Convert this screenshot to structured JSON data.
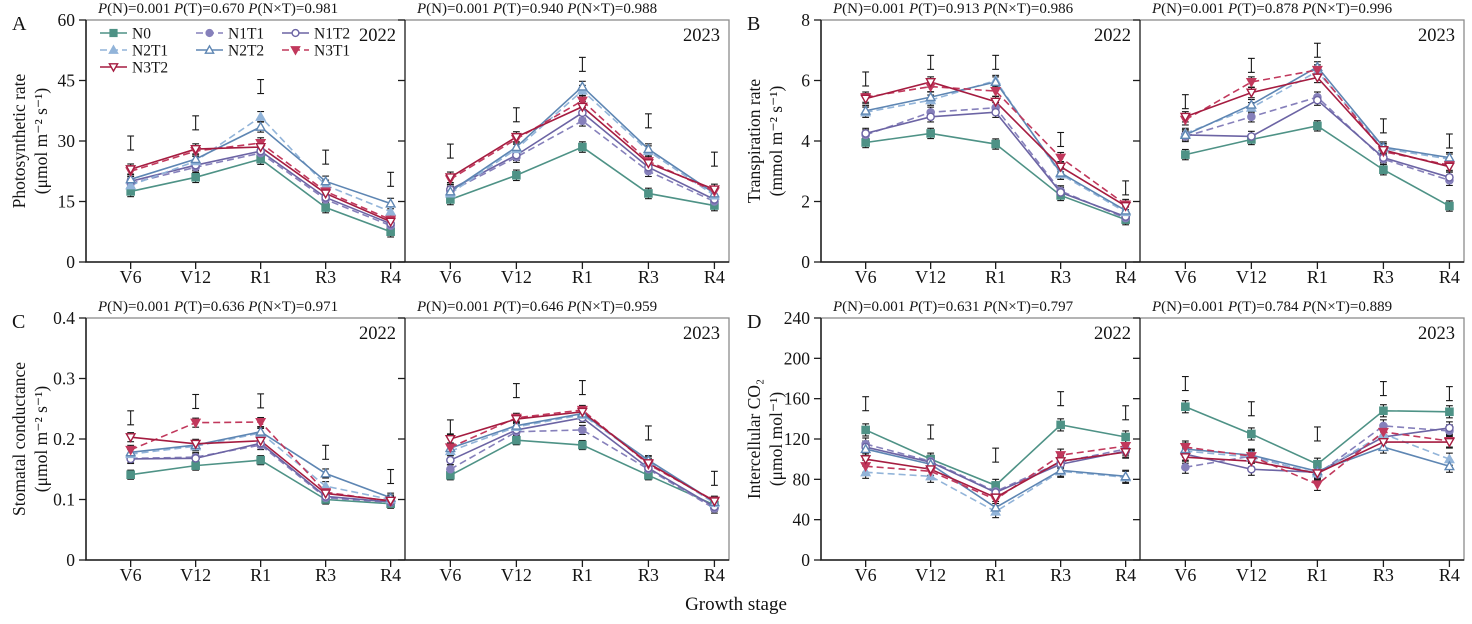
{
  "figure": {
    "xlabel": "Growth stage",
    "categories": [
      "V6",
      "V12",
      "R1",
      "R3",
      "R4"
    ],
    "axis_color": "#1c1c1c",
    "box_color": "#8c8c8c",
    "error_bar_color": "#161616",
    "series_styles": [
      {
        "key": "N0",
        "color": "#4e9286",
        "marker": "square",
        "fill": "filled",
        "dash": "solid"
      },
      {
        "key": "N1T1",
        "color": "#8680bb",
        "marker": "circle",
        "fill": "filled",
        "dash": "dashed"
      },
      {
        "key": "N1T2",
        "color": "#6c64a4",
        "marker": "circle",
        "fill": "open",
        "dash": "solid"
      },
      {
        "key": "N2T1",
        "color": "#92b4d9",
        "marker": "triangle-up",
        "fill": "filled",
        "dash": "dashed"
      },
      {
        "key": "N2T2",
        "color": "#5e86b3",
        "marker": "triangle-up",
        "fill": "open",
        "dash": "solid"
      },
      {
        "key": "N3T1",
        "color": "#c1385c",
        "marker": "triangle-down",
        "fill": "filled",
        "dash": "dashed"
      },
      {
        "key": "N3T2",
        "color": "#a51c40",
        "marker": "triangle-down",
        "fill": "open",
        "dash": "solid"
      }
    ],
    "legend": {
      "rows": [
        [
          "N0",
          "N1T1",
          "N1T2"
        ],
        [
          "N2T1",
          "N2T2",
          "N3T1"
        ],
        [
          "N3T2"
        ]
      ],
      "panel": "A",
      "subpanel": "2022"
    }
  },
  "chart_data": [
    {
      "panel": "A",
      "type": "line",
      "ylabel_line1": "Photosynthetic rate",
      "ylabel_line2": "(μmol m⁻² s⁻¹)",
      "ylim": [
        0,
        60
      ],
      "yticks": [
        0,
        15,
        30,
        45,
        60
      ],
      "ytick_labels": [
        "0",
        "15",
        "30",
        "45",
        "60"
      ],
      "categories": [
        "V6",
        "V12",
        "R1",
        "R3",
        "R4"
      ],
      "subpanels": [
        {
          "year": "2022",
          "p_values": "P(N)=0.001  P(T)=0.670  P(N×T)=0.981",
          "point_error": 1.3,
          "lsd_bars": [
            29.5,
            34.5,
            43.5,
            26.0,
            20.5
          ],
          "series": [
            {
              "name": "N0",
              "values": [
                17.5,
                21.0,
                25.5,
                13.5,
                7.5
              ]
            },
            {
              "name": "N1T1",
              "values": [
                19.5,
                23.5,
                27.0,
                15.5,
                9.0
              ]
            },
            {
              "name": "N1T2",
              "values": [
                20.0,
                24.0,
                27.5,
                16.0,
                9.5
              ]
            },
            {
              "name": "N2T1",
              "values": [
                19.0,
                25.0,
                36.0,
                19.0,
                12.5
              ]
            },
            {
              "name": "N2T2",
              "values": [
                20.5,
                25.5,
                33.5,
                20.0,
                14.5
              ]
            },
            {
              "name": "N3T1",
              "values": [
                22.5,
                27.5,
                29.5,
                17.5,
                10.5
              ]
            },
            {
              "name": "N3T2",
              "values": [
                23.0,
                28.0,
                28.5,
                17.0,
                10.0
              ]
            }
          ]
        },
        {
          "year": "2023",
          "p_values": "P(N)=0.001  P(T)=0.940  P(N×T)=0.988",
          "point_error": 1.3,
          "lsd_bars": [
            27.5,
            36.5,
            49.0,
            35.0,
            25.5
          ],
          "series": [
            {
              "name": "N0",
              "values": [
                15.5,
                21.5,
                28.5,
                17.0,
                14.0
              ]
            },
            {
              "name": "N1T1",
              "values": [
                17.5,
                26.0,
                35.0,
                22.5,
                15.0
              ]
            },
            {
              "name": "N1T2",
              "values": [
                18.0,
                26.5,
                37.0,
                23.5,
                15.5
              ]
            },
            {
              "name": "N2T1",
              "values": [
                17.0,
                28.0,
                42.5,
                27.5,
                16.5
              ]
            },
            {
              "name": "N2T2",
              "values": [
                17.5,
                28.5,
                43.5,
                28.0,
                17.0
              ]
            },
            {
              "name": "N3T1",
              "values": [
                20.5,
                30.5,
                40.0,
                25.0,
                17.5
              ]
            },
            {
              "name": "N3T2",
              "values": [
                21.0,
                31.0,
                38.5,
                24.5,
                18.0
              ]
            }
          ]
        }
      ]
    },
    {
      "panel": "B",
      "type": "line",
      "ylabel_line1": "Transpiration rate",
      "ylabel_line2": "(mmol m⁻² s⁻¹)",
      "ylim": [
        0,
        8
      ],
      "yticks": [
        0,
        2,
        4,
        6,
        8
      ],
      "ytick_labels": [
        "0",
        "2",
        "4",
        "6",
        "8"
      ],
      "categories": [
        "V6",
        "V12",
        "R1",
        "R3",
        "R4"
      ],
      "subpanels": [
        {
          "year": "2022",
          "p_values": "P(N)=0.001  P(T)=0.913  P(N×T)=0.986",
          "point_error": 0.17,
          "lsd_bars": [
            6.05,
            6.6,
            6.6,
            4.05,
            2.45
          ],
          "series": [
            {
              "name": "N0",
              "values": [
                3.95,
                4.25,
                3.9,
                2.2,
                1.4
              ]
            },
            {
              "name": "N1T1",
              "values": [
                4.2,
                4.95,
                5.1,
                2.35,
                1.45
              ]
            },
            {
              "name": "N1T2",
              "values": [
                4.25,
                4.8,
                4.95,
                2.3,
                1.5
              ]
            },
            {
              "name": "N2T1",
              "values": [
                4.95,
                5.35,
                6.0,
                2.9,
                1.65
              ]
            },
            {
              "name": "N2T2",
              "values": [
                5.0,
                5.45,
                5.95,
                2.95,
                1.7
              ]
            },
            {
              "name": "N3T1",
              "values": [
                5.45,
                5.8,
                5.65,
                3.45,
                1.9
              ]
            },
            {
              "name": "N3T2",
              "values": [
                5.4,
                5.95,
                5.3,
                3.15,
                1.85
              ]
            }
          ]
        },
        {
          "year": "2023",
          "p_values": "P(N)=0.001  P(T)=0.878  P(N×T)=0.996",
          "point_error": 0.17,
          "lsd_bars": [
            5.3,
            6.5,
            7.0,
            4.5,
            4.0
          ],
          "series": [
            {
              "name": "N0",
              "values": [
                3.55,
                4.05,
                4.5,
                3.05,
                1.85
              ]
            },
            {
              "name": "N1T1",
              "values": [
                4.15,
                4.8,
                5.45,
                3.4,
                2.7
              ]
            },
            {
              "name": "N1T2",
              "values": [
                4.2,
                4.15,
                5.35,
                3.45,
                2.8
              ]
            },
            {
              "name": "N2T1",
              "values": [
                4.25,
                5.1,
                6.3,
                3.75,
                3.4
              ]
            },
            {
              "name": "N2T2",
              "values": [
                4.2,
                5.2,
                6.45,
                3.8,
                3.45
              ]
            },
            {
              "name": "N3T1",
              "values": [
                4.7,
                5.95,
                6.35,
                3.65,
                3.2
              ]
            },
            {
              "name": "N3T2",
              "values": [
                4.8,
                5.6,
                6.1,
                3.7,
                3.15
              ]
            }
          ]
        }
      ]
    },
    {
      "panel": "C",
      "type": "line",
      "ylabel_line1": "Stomatal conductance",
      "ylabel_line2": "(μmol m⁻² s⁻¹)",
      "ylim": [
        0,
        0.4
      ],
      "yticks": [
        0,
        0.1,
        0.2,
        0.3,
        0.4
      ],
      "ytick_labels": [
        "0",
        "0.1",
        "0.2",
        "0.3",
        "0.4"
      ],
      "categories": [
        "V6",
        "V12",
        "R1",
        "R3",
        "R4"
      ],
      "subpanels": [
        {
          "year": "2022",
          "p_values": "P(N)=0.001  P(T)=0.636  P(N×T)=0.971",
          "point_error": 0.0075,
          "lsd_bars": [
            0.235,
            0.262,
            0.263,
            0.178,
            0.138
          ],
          "series": [
            {
              "name": "N0",
              "values": [
                0.141,
                0.156,
                0.165,
                0.1,
                0.093
              ]
            },
            {
              "name": "N1T1",
              "values": [
                0.168,
                0.17,
                0.19,
                0.103,
                0.095
              ]
            },
            {
              "name": "N1T2",
              "values": [
                0.167,
                0.168,
                0.193,
                0.105,
                0.096
              ]
            },
            {
              "name": "N2T1",
              "values": [
                0.175,
                0.188,
                0.21,
                0.122,
                0.1
              ]
            },
            {
              "name": "N2T2",
              "values": [
                0.178,
                0.19,
                0.212,
                0.143,
                0.103
              ]
            },
            {
              "name": "N3T1",
              "values": [
                0.182,
                0.227,
                0.228,
                0.112,
                0.097
              ]
            },
            {
              "name": "N3T2",
              "values": [
                0.203,
                0.192,
                0.197,
                0.11,
                0.098
              ]
            }
          ]
        },
        {
          "year": "2023",
          "p_values": "P(N)=0.001  P(T)=0.646  P(N×T)=0.959",
          "point_error": 0.0075,
          "lsd_bars": [
            0.22,
            0.28,
            0.285,
            0.21,
            0.135
          ],
          "series": [
            {
              "name": "N0",
              "values": [
                0.14,
                0.198,
                0.19,
                0.14,
                0.091
              ]
            },
            {
              "name": "N1T1",
              "values": [
                0.15,
                0.212,
                0.215,
                0.15,
                0.085
              ]
            },
            {
              "name": "N1T2",
              "values": [
                0.165,
                0.215,
                0.235,
                0.152,
                0.088
              ]
            },
            {
              "name": "N2T1",
              "values": [
                0.18,
                0.22,
                0.24,
                0.163,
                0.094
              ]
            },
            {
              "name": "N2T2",
              "values": [
                0.185,
                0.222,
                0.242,
                0.165,
                0.096
              ]
            },
            {
              "name": "N3T1",
              "values": [
                0.186,
                0.235,
                0.248,
                0.158,
                0.098
              ]
            },
            {
              "name": "N3T2",
              "values": [
                0.2,
                0.233,
                0.245,
                0.16,
                0.097
              ]
            }
          ]
        }
      ]
    },
    {
      "panel": "D",
      "type": "line",
      "ylabel_line1": "Intercellular CO₂",
      "ylabel_line2": "(μmol mol⁻¹)",
      "ylim": [
        0,
        240
      ],
      "yticks": [
        0,
        40,
        80,
        120,
        160,
        200,
        240
      ],
      "ytick_labels": [
        "0",
        "40",
        "80",
        "120",
        "160",
        "200",
        "240"
      ],
      "categories": [
        "V6",
        "V12",
        "R1",
        "R3",
        "R4"
      ],
      "subpanels": [
        {
          "year": "2022",
          "p_values": "P(N)=0.001  P(T)=0.631  P(N×T)=0.797",
          "point_error": 6,
          "lsd_bars": [
            155,
            127,
            104,
            160,
            146
          ],
          "series": [
            {
              "name": "N0",
              "values": [
                129,
                100,
                74,
                134,
                122
              ]
            },
            {
              "name": "N1T1",
              "values": [
                115,
                98,
                68,
                97,
                110
              ]
            },
            {
              "name": "N1T2",
              "values": [
                112,
                97,
                67,
                95,
                108
              ]
            },
            {
              "name": "N2T1",
              "values": [
                87,
                83,
                48,
                88,
                82
              ]
            },
            {
              "name": "N2T2",
              "values": [
                110,
                95,
                52,
                89,
                83
              ]
            },
            {
              "name": "N3T1",
              "values": [
                93,
                88,
                60,
                104,
                113
              ]
            },
            {
              "name": "N3T2",
              "values": [
                100,
                90,
                62,
                98,
                107
              ]
            }
          ]
        },
        {
          "year": "2023",
          "p_values": "P(N)=0.001  P(T)=0.784  P(N×T)=0.889",
          "point_error": 6,
          "lsd_bars": [
            175,
            150,
            125,
            170,
            165
          ],
          "series": [
            {
              "name": "N0",
              "values": [
                152,
                125,
                95,
                148,
                147
              ]
            },
            {
              "name": "N1T1",
              "values": [
                92,
                103,
                85,
                133,
                128
              ]
            },
            {
              "name": "N1T2",
              "values": [
                105,
                90,
                87,
                122,
                131
              ]
            },
            {
              "name": "N2T1",
              "values": [
                108,
                102,
                86,
                125,
                100
              ]
            },
            {
              "name": "N2T2",
              "values": [
                110,
                104,
                88,
                112,
                93
              ]
            },
            {
              "name": "N3T1",
              "values": [
                112,
                103,
                75,
                127,
                118
              ]
            },
            {
              "name": "N3T2",
              "values": [
                102,
                98,
                86,
                117,
                117
              ]
            }
          ]
        }
      ]
    }
  ]
}
